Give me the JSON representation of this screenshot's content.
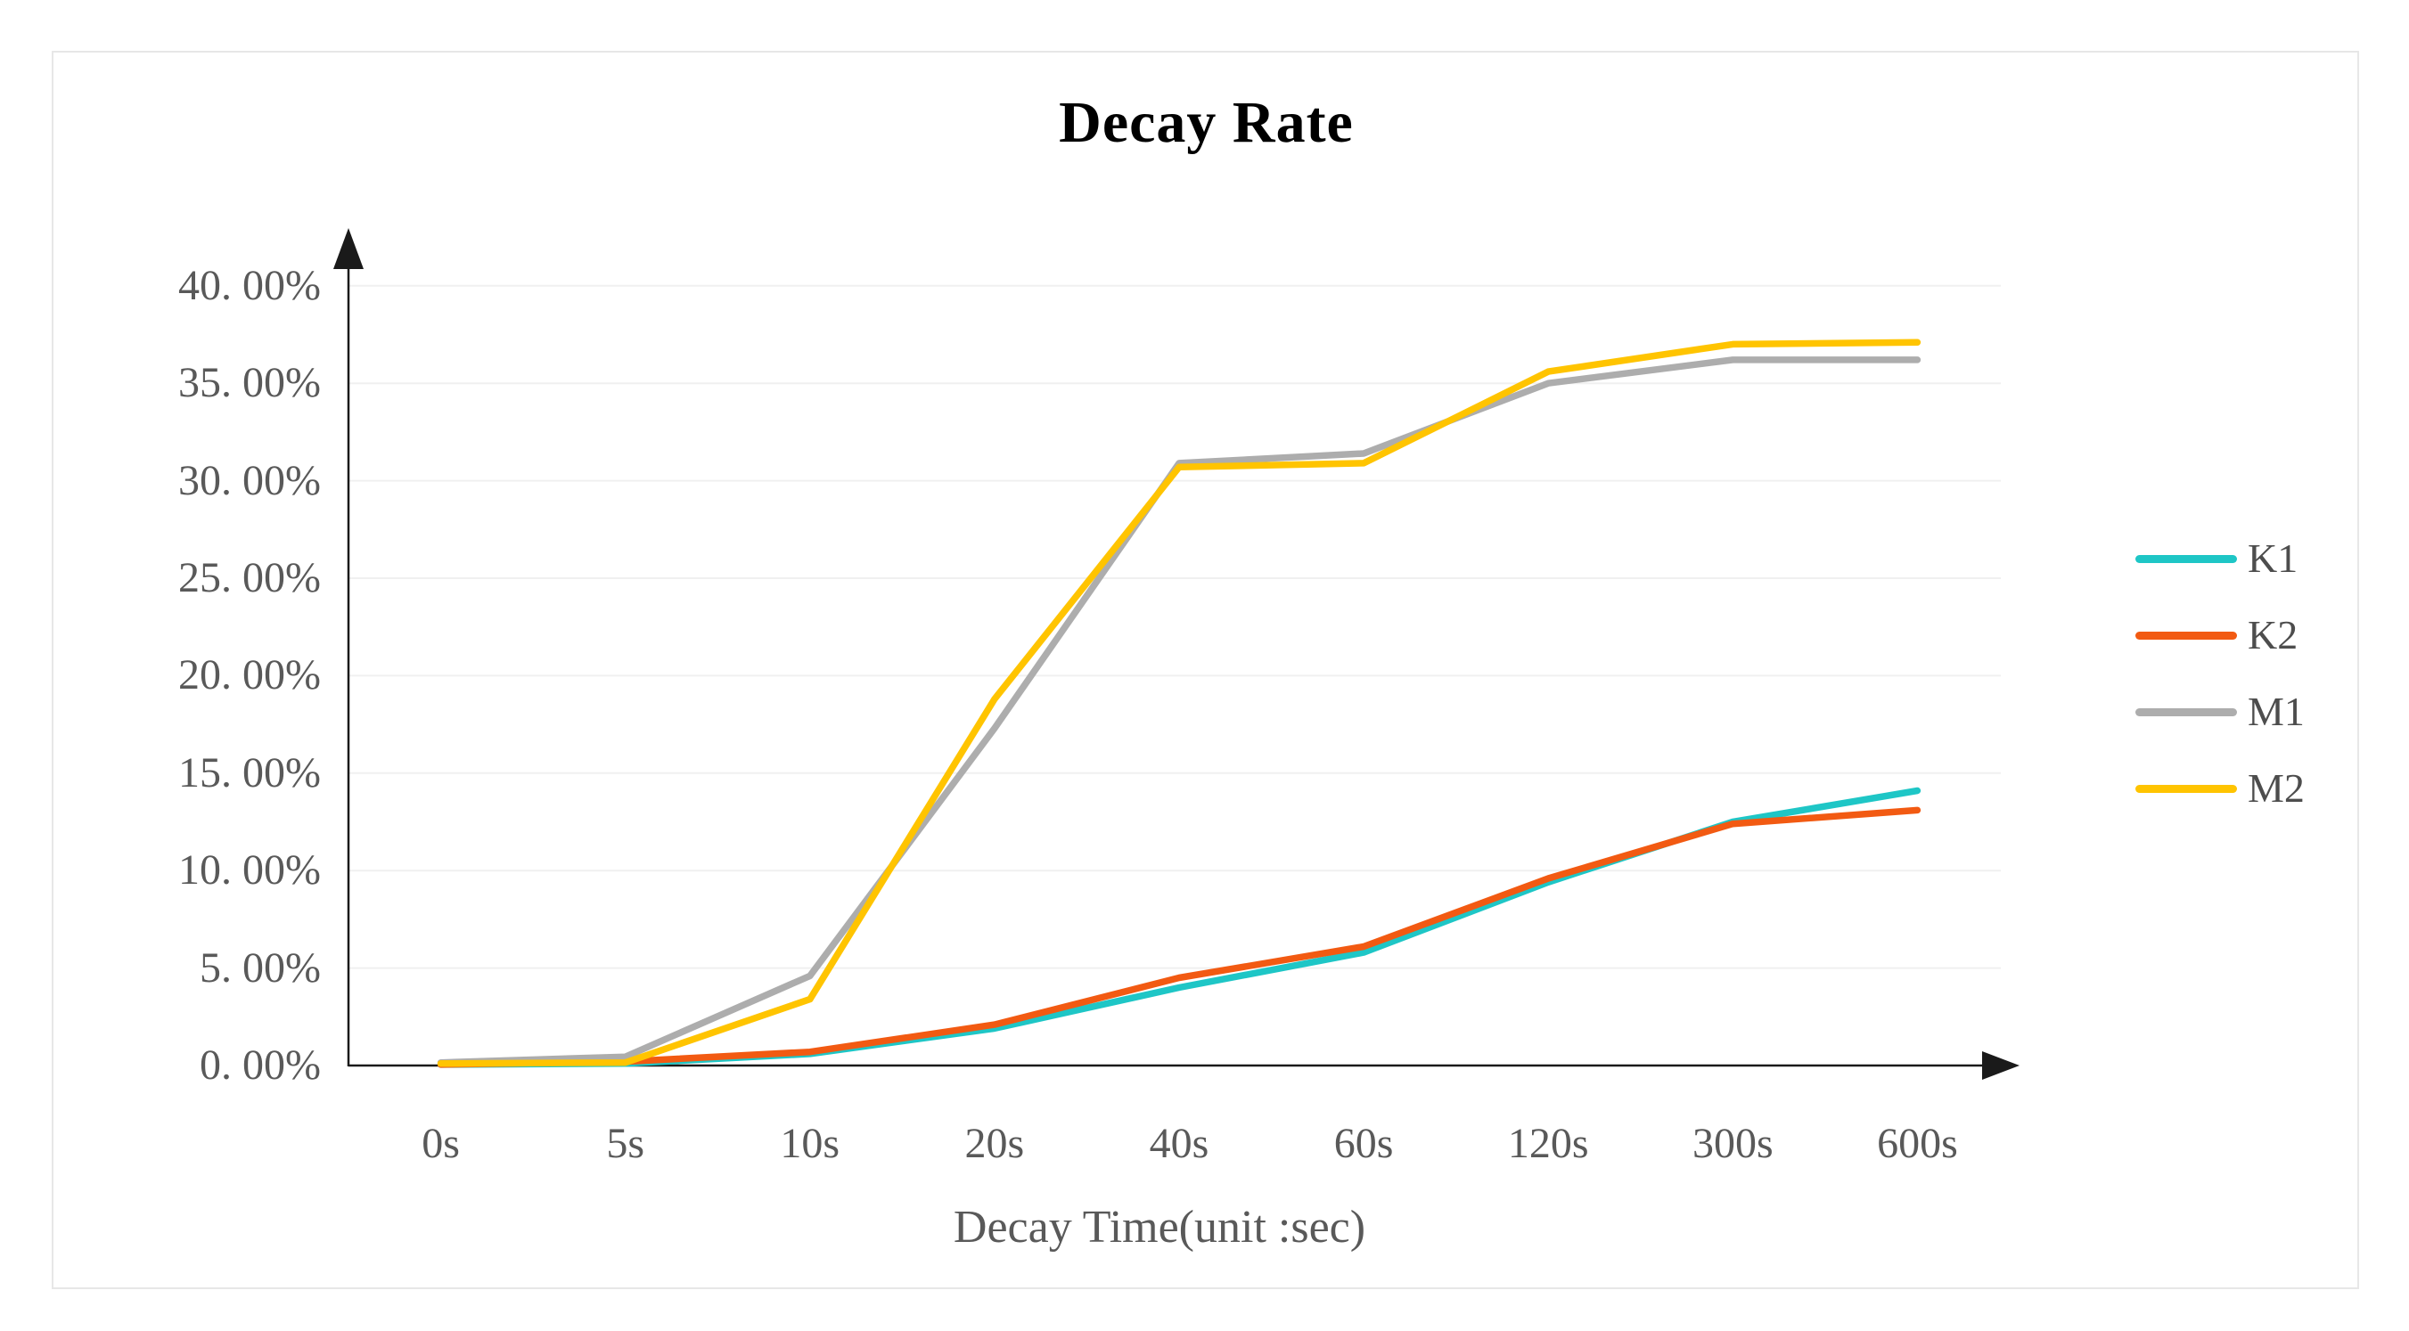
{
  "chart_data": {
    "type": "line",
    "title": "Decay Rate",
    "xlabel": "Decay Time(unit :sec)",
    "categories": [
      "0s",
      "5s",
      "10s",
      "20s",
      "40s",
      "60s",
      "120s",
      "300s",
      "600s"
    ],
    "y_tick_labels": [
      "0. 00%",
      "5. 00%",
      "10. 00%",
      "15. 00%",
      "20. 00%",
      "25. 00%",
      "30. 00%",
      "35. 00%",
      "40. 00%"
    ],
    "y_tick_values": [
      0,
      5,
      10,
      15,
      20,
      25,
      30,
      35,
      40
    ],
    "ylim": [
      0,
      42.5
    ],
    "grid": true,
    "legend_position": "right",
    "series": [
      {
        "name": "K1",
        "color": "#1EC6C6",
        "values": [
          0.05,
          0.1,
          0.6,
          1.9,
          4.0,
          5.8,
          9.4,
          12.5,
          14.1
        ]
      },
      {
        "name": "K2",
        "color": "#F25A12",
        "values": [
          0.05,
          0.2,
          0.7,
          2.1,
          4.5,
          6.1,
          9.6,
          12.4,
          13.1
        ]
      },
      {
        "name": "M1",
        "color": "#ADADAD",
        "values": [
          0.15,
          0.45,
          4.6,
          17.3,
          30.9,
          31.4,
          35.0,
          36.2,
          36.2
        ]
      },
      {
        "name": "M2",
        "color": "#FFC400",
        "values": [
          0.1,
          0.15,
          3.4,
          18.8,
          30.7,
          30.9,
          35.6,
          37.0,
          37.1
        ]
      }
    ]
  },
  "colors": {
    "background": "#ffffff",
    "card_border": "#e7e7e7",
    "grid_line": "#f0f0f0",
    "axis_line": "#1a1a1a",
    "tick_text": "#595959",
    "legend_text": "#4d4d4d",
    "title_text": "#000000"
  }
}
